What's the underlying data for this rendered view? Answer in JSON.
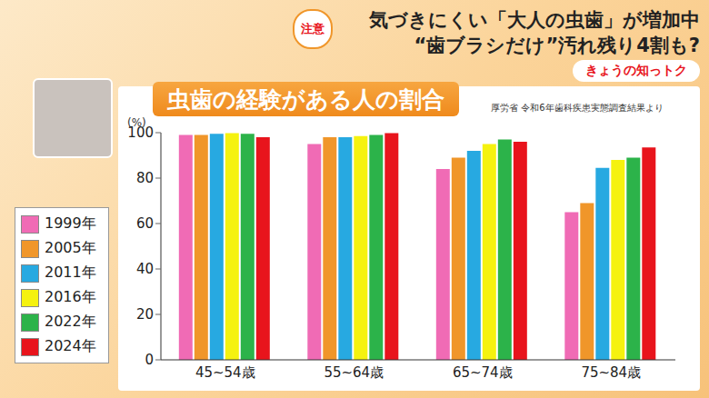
{
  "chart_data": {
    "type": "bar",
    "title": "虫歯の経験がある人の割合",
    "subtitle": "厚労省 令和6年歯科疾患実態調査結果より",
    "y_label": "(%)",
    "annotations": [
      "注意",
      "気づきにくい「大人の虫歯」が増加中",
      "“歯ブラシだけ”汚れ残り4割も?",
      "きょうの知っトク"
    ],
    "categories": [
      "45~54歳",
      "55~64歳",
      "65~74歳",
      "75~84歳"
    ],
    "series": [
      {
        "name": "1999年",
        "color": "#f06bb5",
        "values": [
          99,
          95,
          84,
          65
        ]
      },
      {
        "name": "2005年",
        "color": "#f0962a",
        "values": [
          99,
          98,
          89,
          69
        ]
      },
      {
        "name": "2011年",
        "color": "#27a9e1",
        "values": [
          99.5,
          98,
          92,
          84.5
        ]
      },
      {
        "name": "2016年",
        "color": "#f5f20f",
        "values": [
          99.8,
          98.5,
          95,
          88
        ]
      },
      {
        "name": "2022年",
        "color": "#2cb34a",
        "values": [
          99.5,
          99,
          97,
          89
        ]
      },
      {
        "name": "2024年",
        "color": "#e8141c",
        "values": [
          98,
          99.8,
          96,
          93.5
        ]
      }
    ],
    "ylim": [
      0,
      100
    ],
    "yticks": [
      0,
      20,
      40,
      60,
      80,
      100
    ],
    "grid": false,
    "legend": "left"
  }
}
